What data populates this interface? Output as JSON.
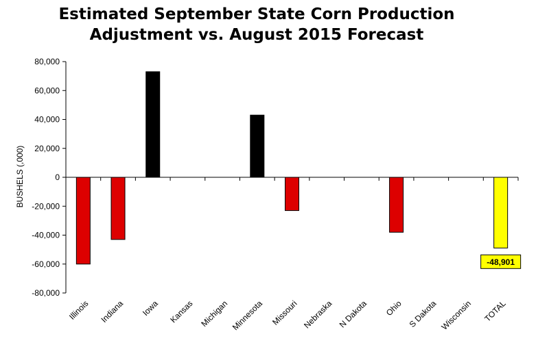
{
  "chart_data": {
    "type": "bar",
    "title": [
      "Estimated September State Corn Production",
      "Adjustment vs. August 2015 Forecast"
    ],
    "ylabel": "BUSHELS (,000)",
    "xlabel": "",
    "ylim": [
      -80000,
      80000
    ],
    "yticks": [
      80000,
      60000,
      40000,
      20000,
      0,
      -20000,
      -40000,
      -60000,
      -80000
    ],
    "ytick_labels": [
      "80,000",
      "60,000",
      "40,000",
      "20,000",
      "0",
      "-20,000",
      "-40,000",
      "-60,000",
      "-80,000"
    ],
    "grid": false,
    "categories": [
      "Illinois",
      "Indiana",
      "Iowa",
      "Kansas",
      "Michigan",
      "Minnesota",
      "Missouri",
      "Nebraska",
      "N Dakota",
      "Ohio",
      "S Dakota",
      "Wisconsin",
      "TOTAL"
    ],
    "values": [
      -60000,
      -43000,
      73000,
      0,
      0,
      43000,
      -23000,
      0,
      0,
      -38000,
      0,
      0,
      -48901
    ],
    "colors": {
      "positive": "#000000",
      "negative": "#dd0000",
      "total": "#ffff00",
      "bar_stroke": "#000000",
      "axis": "#000000"
    },
    "annotations": [
      {
        "category": "TOTAL",
        "text": "-48,901",
        "background": "#ffff00"
      }
    ]
  }
}
